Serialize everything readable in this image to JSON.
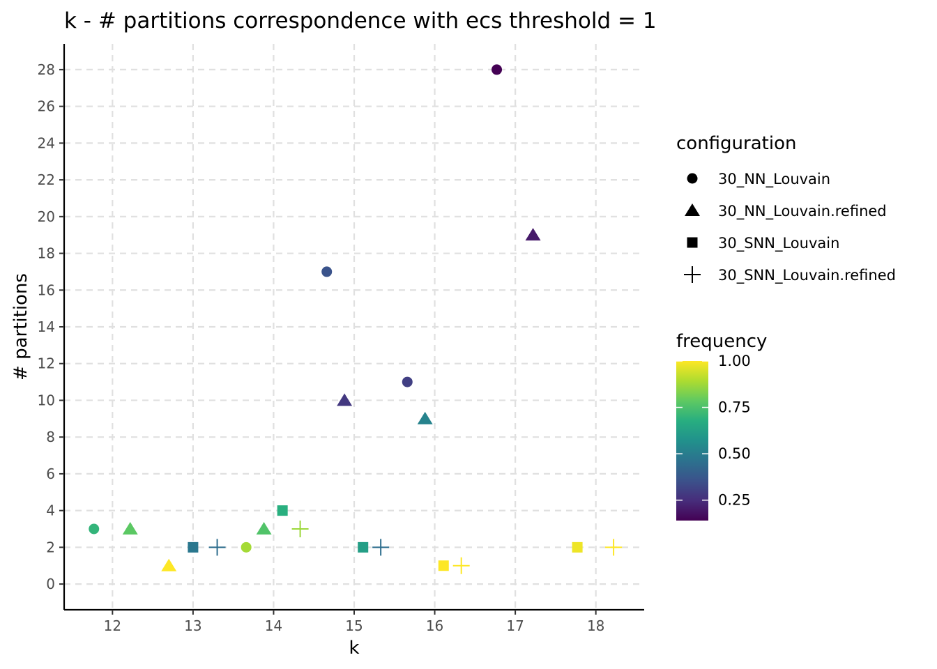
{
  "chart_data": {
    "type": "scatter",
    "title": "k - # partitions correspondence with ecs threshold = 1",
    "xlabel": "k",
    "ylabel": "# partitions",
    "xlim": [
      11.4,
      18.6
    ],
    "ylim": [
      -1.4,
      29.4
    ],
    "x_ticks": [
      12,
      13,
      14,
      15,
      16,
      17,
      18
    ],
    "y_ticks": [
      0,
      2,
      4,
      6,
      8,
      10,
      12,
      14,
      16,
      18,
      20,
      22,
      24,
      26,
      28
    ],
    "grid": true,
    "shape_legend": {
      "title": "configuration",
      "entries": [
        {
          "label": "30_NN_Louvain",
          "shape": "circle"
        },
        {
          "label": "30_NN_Louvain.refined",
          "shape": "triangle"
        },
        {
          "label": "30_SNN_Louvain",
          "shape": "square"
        },
        {
          "label": "30_SNN_Louvain.refined",
          "shape": "plus"
        }
      ]
    },
    "color_legend": {
      "title": "frequency",
      "colormap": "viridis",
      "range": [
        0.14,
        1.0
      ],
      "ticks": [
        "1.00",
        "0.75",
        "0.50",
        "0.25"
      ],
      "tick_values": [
        1.0,
        0.75,
        0.5,
        0.25
      ]
    },
    "points": [
      {
        "configuration": "30_NN_Louvain",
        "shape": "circle",
        "k": 11.77,
        "partitions": 3,
        "frequency": 0.7
      },
      {
        "configuration": "30_NN_Louvain",
        "shape": "circle",
        "k": 13.66,
        "partitions": 2,
        "frequency": 0.88
      },
      {
        "configuration": "30_NN_Louvain",
        "shape": "circle",
        "k": 14.66,
        "partitions": 17,
        "frequency": 0.36
      },
      {
        "configuration": "30_NN_Louvain",
        "shape": "circle",
        "k": 15.66,
        "partitions": 11,
        "frequency": 0.3
      },
      {
        "configuration": "30_NN_Louvain",
        "shape": "circle",
        "k": 16.77,
        "partitions": 28,
        "frequency": 0.14
      },
      {
        "configuration": "30_NN_Louvain.refined",
        "shape": "triangle",
        "k": 12.22,
        "partitions": 3,
        "frequency": 0.78
      },
      {
        "configuration": "30_NN_Louvain.refined",
        "shape": "triangle",
        "k": 12.7,
        "partitions": 1,
        "frequency": 1.0
      },
      {
        "configuration": "30_NN_Louvain.refined",
        "shape": "triangle",
        "k": 13.88,
        "partitions": 3,
        "frequency": 0.76
      },
      {
        "configuration": "30_NN_Louvain.refined",
        "shape": "triangle",
        "k": 14.88,
        "partitions": 10,
        "frequency": 0.28
      },
      {
        "configuration": "30_NN_Louvain.refined",
        "shape": "triangle",
        "k": 15.88,
        "partitions": 9,
        "frequency": 0.52
      },
      {
        "configuration": "30_NN_Louvain.refined",
        "shape": "triangle",
        "k": 17.22,
        "partitions": 19,
        "frequency": 0.2
      },
      {
        "configuration": "30_SNN_Louvain",
        "shape": "square",
        "k": 13.0,
        "partitions": 2,
        "frequency": 0.48
      },
      {
        "configuration": "30_SNN_Louvain",
        "shape": "square",
        "k": 14.11,
        "partitions": 4,
        "frequency": 0.68
      },
      {
        "configuration": "30_SNN_Louvain",
        "shape": "square",
        "k": 15.11,
        "partitions": 2,
        "frequency": 0.62
      },
      {
        "configuration": "30_SNN_Louvain",
        "shape": "square",
        "k": 16.11,
        "partitions": 1,
        "frequency": 1.0
      },
      {
        "configuration": "30_SNN_Louvain",
        "shape": "square",
        "k": 17.77,
        "partitions": 2,
        "frequency": 0.98
      },
      {
        "configuration": "30_SNN_Louvain.refined",
        "shape": "plus",
        "k": 13.3,
        "partitions": 2,
        "frequency": 0.45
      },
      {
        "configuration": "30_SNN_Louvain.refined",
        "shape": "plus",
        "k": 14.33,
        "partitions": 3,
        "frequency": 0.87
      },
      {
        "configuration": "30_SNN_Louvain.refined",
        "shape": "plus",
        "k": 15.33,
        "partitions": 2,
        "frequency": 0.45
      },
      {
        "configuration": "30_SNN_Louvain.refined",
        "shape": "plus",
        "k": 16.33,
        "partitions": 1,
        "frequency": 1.0
      },
      {
        "configuration": "30_SNN_Louvain.refined",
        "shape": "plus",
        "k": 18.22,
        "partitions": 2,
        "frequency": 1.0
      }
    ]
  }
}
